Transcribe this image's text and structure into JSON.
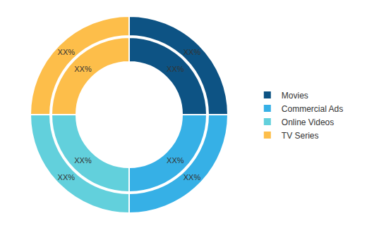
{
  "chart_data": {
    "type": "donut",
    "categories": [
      "Movies",
      "Commercial Ads",
      "Online Videos",
      "TV Series"
    ],
    "colors": [
      "#0d5384",
      "#36b0e6",
      "#62d0dc",
      "#fdbe4a"
    ],
    "data_labels": true,
    "series": [
      {
        "values": [
          25,
          25,
          25,
          25
        ],
        "value_labels": [
          "XX%",
          "XX%",
          "XX%",
          "XX%"
        ]
      },
      {
        "values": [
          25,
          25,
          25,
          25
        ],
        "value_labels": [
          "XX%",
          "XX%",
          "XX%",
          "XX%"
        ]
      }
    ]
  }
}
